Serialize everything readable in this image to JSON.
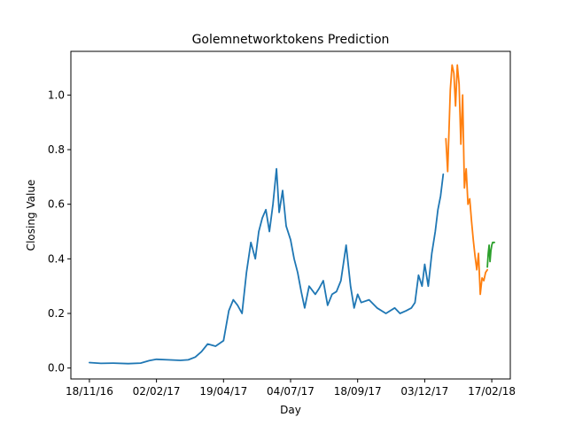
{
  "chart_data": {
    "type": "line",
    "title": "Golemnetworktokens Prediction",
    "xlabel": "Day",
    "ylabel": "Closing Value",
    "x_tick_labels": [
      "18/11/16",
      "02/02/17",
      "19/04/17",
      "04/07/17",
      "18/09/17",
      "03/12/17",
      "17/02/18"
    ],
    "y_tick_labels": [
      "0.0",
      "0.2",
      "0.4",
      "0.6",
      "0.8",
      "1.0"
    ],
    "y_ticks": [
      0.0,
      0.2,
      0.4,
      0.6,
      0.8,
      1.0
    ],
    "xlim": [
      "2016-10-28",
      "2018-03-10"
    ],
    "ylim": [
      -0.04,
      1.16
    ],
    "grid": false,
    "series": [
      {
        "color": "#1f77b4",
        "x": [
          "2016-11-18",
          "2016-12-01",
          "2016-12-15",
          "2017-01-01",
          "2017-01-15",
          "2017-01-25",
          "2017-02-02",
          "2017-02-15",
          "2017-03-01",
          "2017-03-10",
          "2017-03-18",
          "2017-03-25",
          "2017-04-01",
          "2017-04-10",
          "2017-04-19",
          "2017-04-25",
          "2017-04-30",
          "2017-05-05",
          "2017-05-10",
          "2017-05-15",
          "2017-05-20",
          "2017-05-25",
          "2017-05-29",
          "2017-06-02",
          "2017-06-06",
          "2017-06-10",
          "2017-06-14",
          "2017-06-18",
          "2017-06-21",
          "2017-06-25",
          "2017-06-29",
          "2017-07-04",
          "2017-07-08",
          "2017-07-12",
          "2017-07-16",
          "2017-07-20",
          "2017-07-25",
          "2017-08-01",
          "2017-08-05",
          "2017-08-10",
          "2017-08-15",
          "2017-08-20",
          "2017-08-25",
          "2017-08-30",
          "2017-09-05",
          "2017-09-10",
          "2017-09-14",
          "2017-09-18",
          "2017-09-22",
          "2017-10-01",
          "2017-10-10",
          "2017-10-20",
          "2017-10-30",
          "2017-11-05",
          "2017-11-12",
          "2017-11-18",
          "2017-11-22",
          "2017-11-26",
          "2017-11-30",
          "2017-12-03",
          "2017-12-07",
          "2017-12-11",
          "2017-12-15",
          "2017-12-18",
          "2017-12-21",
          "2017-12-24"
        ],
        "values": [
          0.02,
          0.017,
          0.018,
          0.016,
          0.018,
          0.027,
          0.032,
          0.03,
          0.028,
          0.03,
          0.04,
          0.06,
          0.088,
          0.08,
          0.1,
          0.21,
          0.25,
          0.23,
          0.2,
          0.35,
          0.46,
          0.4,
          0.5,
          0.55,
          0.58,
          0.5,
          0.6,
          0.73,
          0.57,
          0.65,
          0.52,
          0.47,
          0.4,
          0.35,
          0.28,
          0.22,
          0.3,
          0.27,
          0.29,
          0.32,
          0.23,
          0.27,
          0.28,
          0.32,
          0.45,
          0.3,
          0.22,
          0.27,
          0.24,
          0.25,
          0.22,
          0.2,
          0.22,
          0.2,
          0.21,
          0.22,
          0.24,
          0.34,
          0.3,
          0.38,
          0.3,
          0.42,
          0.5,
          0.58,
          0.63,
          0.71
        ]
      },
      {
        "color": "#ff7f0e",
        "x": [
          "2017-12-27",
          "2017-12-29",
          "2018-01-01",
          "2018-01-03",
          "2018-01-05",
          "2018-01-07",
          "2018-01-09",
          "2018-01-11",
          "2018-01-13",
          "2018-01-15",
          "2018-01-17",
          "2018-01-19",
          "2018-01-21",
          "2018-01-23",
          "2018-01-25",
          "2018-01-27",
          "2018-01-29",
          "2018-01-31",
          "2018-02-02",
          "2018-02-04",
          "2018-02-06",
          "2018-02-08",
          "2018-02-10",
          "2018-02-12"
        ],
        "values": [
          0.84,
          0.72,
          1.02,
          1.11,
          1.08,
          0.96,
          1.11,
          1.04,
          0.82,
          1.0,
          0.66,
          0.73,
          0.6,
          0.62,
          0.54,
          0.47,
          0.41,
          0.36,
          0.42,
          0.27,
          0.33,
          0.32,
          0.35,
          0.36
        ]
      },
      {
        "color": "#2ca02c",
        "x": [
          "2018-02-12",
          "2018-02-13",
          "2018-02-14",
          "2018-02-15",
          "2018-02-16",
          "2018-02-17",
          "2018-02-18",
          "2018-02-20"
        ],
        "values": [
          0.37,
          0.42,
          0.45,
          0.39,
          0.43,
          0.45,
          0.46,
          0.46
        ]
      }
    ]
  }
}
